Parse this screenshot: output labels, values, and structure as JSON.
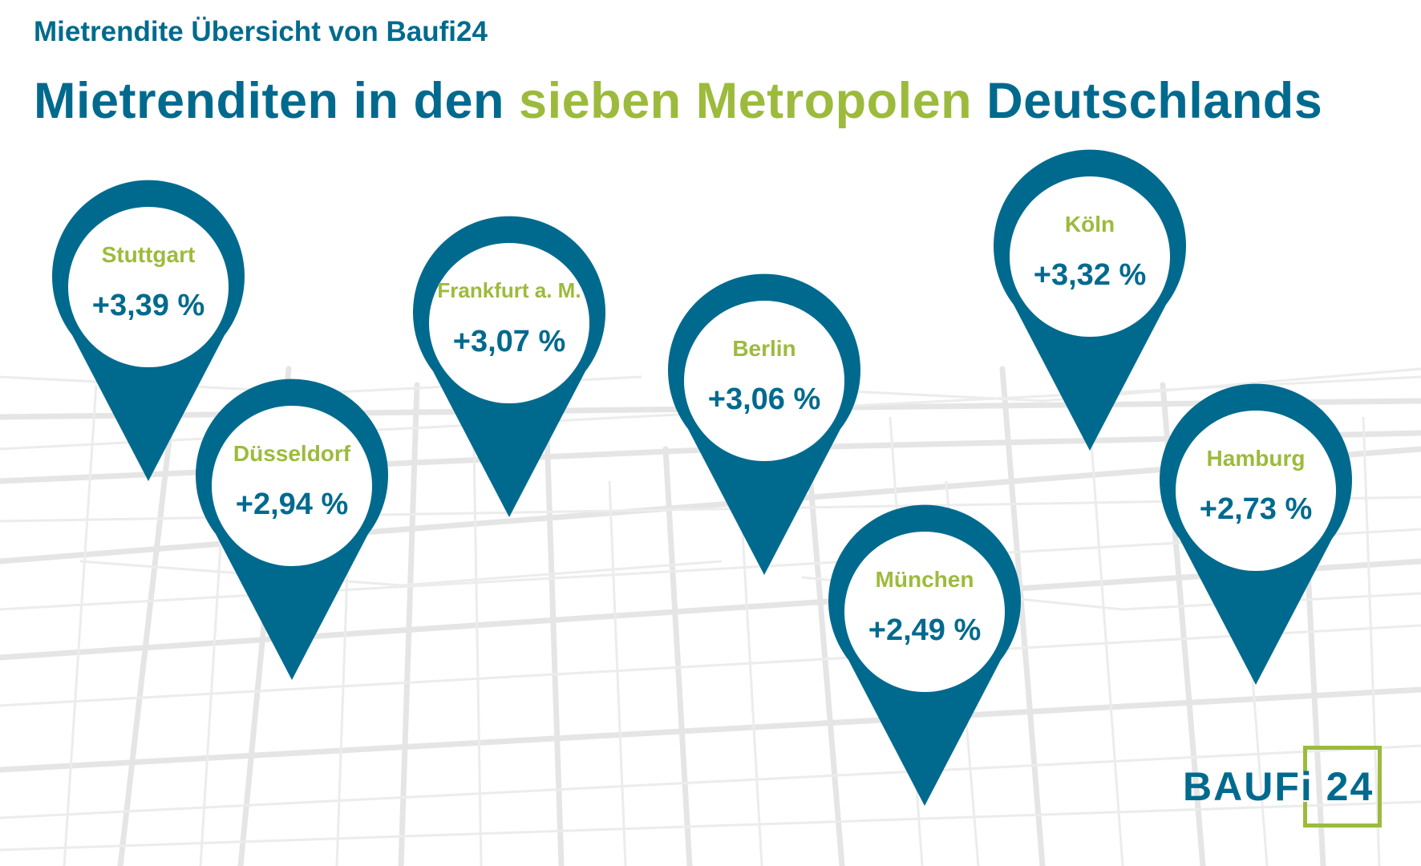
{
  "header": {
    "subtitle": "Mietrendite Übersicht von Baufi24",
    "title_part1": "Mietrenditen in den",
    "title_highlight": "sieben Metropolen",
    "title_part2": "Deutschlands"
  },
  "pins": [
    {
      "city": "Stuttgart",
      "value": "+3,39 %"
    },
    {
      "city": "Düsseldorf",
      "value": "+2,94 %"
    },
    {
      "city": "Frankfurt a. M.",
      "value": "+3,07 %"
    },
    {
      "city": "Berlin",
      "value": "+3,06 %"
    },
    {
      "city": "München",
      "value": "+2,49 %"
    },
    {
      "city": "Köln",
      "value": "+3,32 %"
    },
    {
      "city": "Hamburg",
      "value": "+2,73 %"
    }
  ],
  "logo": {
    "text": "BAUFi 24"
  },
  "colors": {
    "primary": "#006a8e",
    "accent": "#9cbb3c",
    "map_lines": "#e6e6e6"
  }
}
